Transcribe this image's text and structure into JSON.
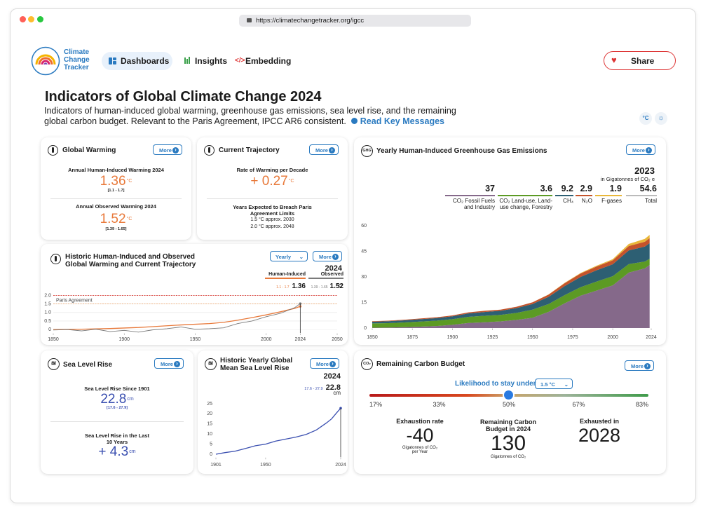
{
  "browser": {
    "url": "https://climatechangetracker.org/igcc"
  },
  "nav": {
    "logo": [
      "Climate",
      "Change",
      "Tracker"
    ],
    "links": [
      "Dashboards",
      "Insights",
      "Embedding"
    ],
    "share": "Share"
  },
  "header": {
    "title": "Indicators of Global Climate Change 2024",
    "description": "Indicators of human-induced global warming, greenhouse gas emissions, sea level rise, and the remaining global carbon budget. Relevant to the Paris Agreement, IPCC AR6 consistent.",
    "link": "Read Key Messages",
    "units": "°C"
  },
  "global_warming": {
    "title": "Global Warming",
    "more": "More",
    "stats": [
      {
        "label": "Annual Human-Induced Warming 2024",
        "value": "1.36",
        "unit": "°C",
        "range": "[1.1 - 1.7]"
      },
      {
        "label": "Annual Observed Warming 2024",
        "value": "1.52",
        "unit": "°C",
        "range": "[1.39 - 1.65]"
      }
    ]
  },
  "current_trajectory": {
    "title": "Current Trajectory",
    "more": "More",
    "rate_label": "Rate of Warming per Decade",
    "rate": "+ 0.27",
    "unit": "°C",
    "breach_label": "Years Expected to Breach Paris Agreement Limits",
    "breach": [
      "1.5 °C approx. 2030",
      "2.0 °C approx. 2048"
    ]
  },
  "historic_warming": {
    "title": "Historic Human-Induced and Observed Global Warming and Current Trajectory",
    "select": "Yearly",
    "more": "More",
    "year": 2024,
    "unit": "°C",
    "chart": {
      "type": "line",
      "x": [
        1850,
        1860,
        1870,
        1880,
        1890,
        1900,
        1910,
        1920,
        1930,
        1940,
        1950,
        1960,
        1970,
        1980,
        1990,
        2000,
        2010,
        2020,
        2024
      ],
      "series": [
        {
          "name": "Human-Induced",
          "color": "#e8793a",
          "range": "1.1 - 1.7",
          "values": [
            0,
            0.01,
            0.02,
            0.04,
            0.06,
            0.09,
            0.12,
            0.17,
            0.22,
            0.27,
            0.31,
            0.35,
            0.42,
            0.55,
            0.7,
            0.86,
            1.04,
            1.24,
            1.36
          ]
        },
        {
          "name": "Observed",
          "color": "#7a7a7a",
          "range": "1.39 - 1.65",
          "values": [
            -0.03,
            0,
            -0.08,
            0.02,
            -0.12,
            -0.05,
            -0.15,
            -0.02,
            0.05,
            0.15,
            0.02,
            0.05,
            0.1,
            0.35,
            0.5,
            0.75,
            0.95,
            1.28,
            1.52
          ]
        }
      ],
      "xlim": [
        1850,
        2050
      ],
      "xticks": [
        1850,
        1900,
        1950,
        2000,
        2024,
        2050
      ],
      "ylim": [
        -0.2,
        2.1
      ],
      "yticks": [
        0,
        0.5,
        {
          "value": 1,
          "label": "1.0"
        },
        1.5,
        {
          "value": 2,
          "label": "2.0"
        }
      ],
      "grid": true,
      "paris_agreement": {
        "label": "Paris Agreement",
        "values": [
          1.5,
          2
        ]
      }
    }
  },
  "ghg": {
    "icon": "GHG",
    "title": "Yearly Human-Induced Greenhouse Gas Emissions",
    "more": "More",
    "year": 2023,
    "unit": "in Gigatonnes of CO₂ e",
    "total_label": "Total",
    "total": 54.6,
    "chart": {
      "type": "area",
      "stacked": true,
      "grid": false,
      "x": [
        1850,
        1860,
        1870,
        1880,
        1890,
        1900,
        1910,
        1920,
        1930,
        1940,
        1950,
        1960,
        1970,
        1980,
        1990,
        2000,
        2010,
        2020,
        2023
      ],
      "series": [
        {
          "name": "CO₂ Fossil Fuels and Industry",
          "color": "#85698a",
          "values": [
            0.2,
            0.3,
            0.5,
            0.8,
            1.2,
            1.9,
            3,
            3.4,
            3.9,
            4.8,
            6,
            9.5,
            14.5,
            19,
            22,
            25,
            32.5,
            35,
            37
          ]
        },
        {
          "name": "CO₂ Land-use, Land-use change, Forestry",
          "color": "#5c9a24",
          "values": [
            2.5,
            2.6,
            2.8,
            3,
            3.1,
            3.3,
            3.6,
            3.8,
            3.8,
            4.1,
            4.8,
            4.6,
            4.8,
            5,
            5.3,
            5.4,
            5,
            4,
            3.6
          ]
        },
        {
          "name": "CH₄",
          "color": "#2d5f73",
          "values": [
            1,
            1.1,
            1.2,
            1.4,
            1.5,
            1.7,
            2,
            2.2,
            2.4,
            2.8,
            3.3,
            4.2,
            5.3,
            6,
            6.6,
            7,
            8,
            8.8,
            9.2
          ]
        },
        {
          "name": "N₂O",
          "color": "#c4532b",
          "values": [
            0.3,
            0.3,
            0.4,
            0.4,
            0.5,
            0.5,
            0.6,
            0.7,
            0.7,
            0.8,
            1,
            1.3,
            1.7,
            2,
            2.2,
            2.3,
            2.6,
            2.8,
            2.9
          ]
        },
        {
          "name": "F-gases",
          "color": "#e9b73a",
          "values": [
            0,
            0,
            0,
            0,
            0,
            0,
            0,
            0,
            0,
            0,
            0,
            0.1,
            0.2,
            0.3,
            0.5,
            0.7,
            1.2,
            1.7,
            1.9
          ]
        }
      ],
      "xlim": [
        1850,
        2024
      ],
      "xticks": [
        1850,
        1875,
        1900,
        1925,
        1950,
        1975,
        2000,
        2024
      ],
      "ylim": [
        0,
        60
      ],
      "yticks": [
        0,
        15,
        30,
        45,
        60
      ]
    }
  },
  "sea_level": {
    "title": "Sea Level Rise",
    "more": "More",
    "since_label": "Sea Level Rise Since 1901",
    "since": "22.8",
    "unit": "cm",
    "since_range": "[17.6 - 27.9]",
    "recent_label": "Sea Level Rise in the Last 10 Years",
    "recent": "+ 4.3"
  },
  "historic_sea_level": {
    "title": "Historic Yearly Global Mean Sea Level Rise",
    "more": "More",
    "year": 2024,
    "range": "17.6 - 27.9",
    "unit": "cm",
    "chart": {
      "type": "line",
      "grid": false,
      "x": [
        1901,
        1910,
        1920,
        1930,
        1940,
        1950,
        1960,
        1970,
        1980,
        1990,
        2000,
        2010,
        2015,
        2020,
        2024
      ],
      "series": [
        {
          "color": "#3a4fb0",
          "values": [
            0,
            0.8,
            1.5,
            2.8,
            4.2,
            5,
            6.5,
            7.5,
            8.5,
            9.8,
            12,
            15.5,
            17.5,
            20.5,
            22.8
          ]
        }
      ],
      "xlim": [
        1901,
        2024
      ],
      "xticks": [
        1901,
        1950,
        2024
      ],
      "ylim": [
        -1.5,
        26
      ],
      "yticks": [
        0,
        5,
        10,
        15,
        20,
        25
      ]
    }
  },
  "carbon_budget": {
    "icon": "CO₂",
    "title": "Remaining Carbon Budget",
    "more": "More",
    "likelihood_label": "Likelihood to stay under",
    "threshold": "1.5 °C",
    "likelihoods": [
      "17%",
      "33%",
      "50%",
      "67%",
      "83%"
    ],
    "stats": [
      {
        "label": "Exhaustion rate",
        "value": "-40",
        "unit": "Gigatonnes of CO₂ per Year"
      },
      {
        "label": "Remaining Carbon Budget in 2024",
        "value": "130",
        "unit": "Gigatonnes of CO₂"
      },
      {
        "label": "Exhausted in",
        "value": "2028"
      }
    ]
  }
}
